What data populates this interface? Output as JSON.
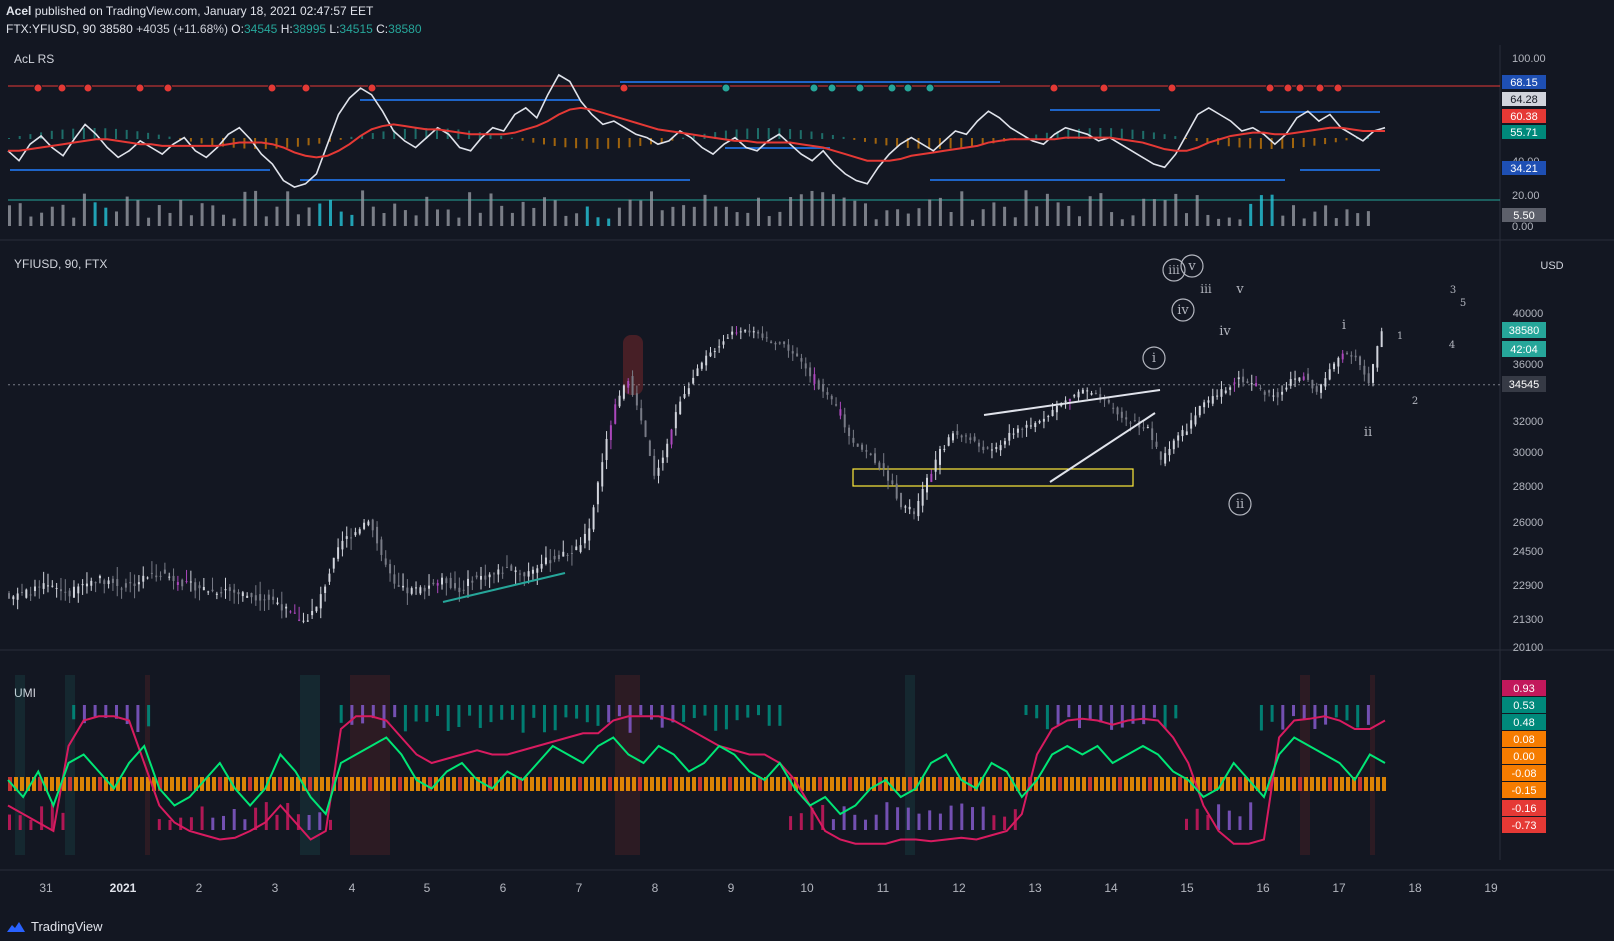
{
  "header": {
    "author": "Acel",
    "published": "published on TradingView.com, January 18, 2021 02:47:57 EET",
    "symbol_line": "FTX:YFIUSD, 90",
    "last": "38580",
    "change": "+4035 (+11.68%)",
    "o_label": "O:",
    "o": "34545",
    "h_label": "H:",
    "h": "38995",
    "l_label": "L:",
    "l": "34515",
    "c_label": "C:",
    "c": "38580"
  },
  "footer": {
    "brand": "TradingView"
  },
  "colors": {
    "bg": "#131722",
    "up": "#d1d4dc",
    "down": "#787b86",
    "teal": "#26a69a",
    "red": "#e53935",
    "magenta": "#d81b60",
    "green": "#00e676",
    "purple": "#7e57c2",
    "orange": "#ff9800",
    "blue": "#1565c0",
    "white": "#e0e3eb",
    "yellow": "#ffeb3b"
  },
  "chart_data": [
    {
      "type": "line",
      "title": "AcL RS",
      "y_ticks": [
        "100.00",
        "40.00",
        "20.00",
        "0.00"
      ],
      "badges": [
        {
          "value": "68.15",
          "color": "#1e4fb3"
        },
        {
          "value": "64.28",
          "color": "#d1d4dc"
        },
        {
          "value": "60.38",
          "color": "#e53935"
        },
        {
          "value": "55.71",
          "color": "#00897b"
        },
        {
          "value": "34.21",
          "color": "#1e4fb3"
        },
        {
          "value": "5.50",
          "color": "#5d606b"
        }
      ],
      "series": [
        {
          "color": "#e0e3eb",
          "values": [
            48,
            42,
            52,
            57,
            50,
            45,
            55,
            64,
            58,
            50,
            44,
            48,
            54,
            50,
            46,
            52,
            56,
            48,
            44,
            50,
            58,
            62,
            55,
            46,
            40,
            30,
            26,
            28,
            34,
            52,
            70,
            80,
            86,
            82,
            72,
            60,
            54,
            50,
            56,
            62,
            58,
            50,
            48,
            56,
            62,
            60,
            70,
            74,
            68,
            82,
            94,
            90,
            78,
            70,
            64,
            66,
            62,
            58,
            56,
            52,
            54,
            60,
            56,
            50,
            46,
            52,
            56,
            50,
            48,
            54,
            58,
            52,
            46,
            42,
            48,
            40,
            34,
            30,
            28,
            38,
            46,
            52,
            56,
            52,
            48,
            54,
            60,
            58,
            66,
            72,
            68,
            62,
            58,
            54,
            52,
            58,
            62,
            60,
            58,
            54,
            56,
            52,
            48,
            44,
            40,
            38,
            46,
            58,
            70,
            74,
            70,
            66,
            60,
            62,
            58,
            52,
            58,
            68,
            72,
            66,
            70,
            62,
            58,
            54,
            60,
            62
          ]
        },
        {
          "color": "#e53935",
          "values": [
            48,
            48,
            49,
            50,
            51,
            52,
            53,
            54,
            55,
            55,
            54,
            53,
            52,
            52,
            51,
            51,
            51,
            51,
            51,
            51,
            52,
            53,
            53,
            53,
            52,
            50,
            47,
            45,
            44,
            45,
            48,
            52,
            57,
            61,
            63,
            64,
            63,
            62,
            61,
            61,
            60,
            59,
            58,
            58,
            58,
            58,
            59,
            61,
            63,
            66,
            70,
            73,
            74,
            73,
            71,
            69,
            67,
            65,
            63,
            61,
            60,
            59,
            58,
            57,
            56,
            55,
            54,
            54,
            53,
            53,
            53,
            53,
            52,
            51,
            50,
            48,
            46,
            44,
            42,
            42,
            42,
            43,
            45,
            46,
            47,
            48,
            49,
            50,
            51,
            53,
            54,
            55,
            55,
            55,
            55,
            55,
            56,
            56,
            56,
            56,
            56,
            55,
            54,
            53,
            51,
            49,
            48,
            48,
            50,
            53,
            55,
            57,
            58,
            59,
            59,
            58,
            58,
            59,
            60,
            61,
            62,
            62,
            61,
            60,
            60,
            60
          ]
        }
      ]
    },
    {
      "type": "candlestick",
      "title": "YFIUSD, 90, FTX",
      "currency": "USD",
      "y_ticks": [
        "40000",
        "36000",
        "32000",
        "30000",
        "28000",
        "26000",
        "24500",
        "22900",
        "21300",
        "20100"
      ],
      "price_badges": [
        {
          "value": "38580",
          "color": "#26a69a"
        },
        {
          "value": "42:04",
          "color": "#26a69a"
        },
        {
          "value": "34545",
          "color": "#363a45"
        }
      ],
      "x_ticks": [
        "31",
        "2021",
        "2",
        "3",
        "4",
        "5",
        "6",
        "7",
        "8",
        "9",
        "10",
        "11",
        "12",
        "13",
        "14",
        "15",
        "16",
        "17",
        "18",
        "19"
      ],
      "close": [
        22400,
        22600,
        22800,
        22700,
        22500,
        22900,
        23200,
        23100,
        22800,
        23000,
        23300,
        23500,
        23200,
        22900,
        22800,
        22600,
        22700,
        22500,
        22400,
        22300,
        22100,
        21500,
        21200,
        21800,
        23500,
        25000,
        25500,
        26200,
        24300,
        22800,
        22600,
        22700,
        23000,
        23100,
        22600,
        23200,
        23300,
        23500,
        23700,
        23400,
        23800,
        24100,
        24300,
        24600,
        25500,
        29500,
        33000,
        35000,
        32000,
        28500,
        30500,
        33500,
        35000,
        36500,
        37500,
        38500,
        38800,
        38200,
        37800,
        37500,
        36500,
        35200,
        34000,
        33000,
        31000,
        30200,
        29500,
        28500,
        27000,
        26500,
        28300,
        30000,
        31200,
        31000,
        30400,
        30000,
        30800,
        31500,
        31600,
        32300,
        33000,
        33600,
        34200,
        33700,
        33100,
        32200,
        31900,
        31500,
        29500,
        30800,
        31500,
        32900,
        33600,
        34300,
        35000,
        34600,
        34000,
        33800,
        34800,
        35200,
        34000,
        35500,
        37000,
        36600,
        34545,
        38580
      ],
      "annotations": [
        {
          "text": "iii",
          "circled": true
        },
        {
          "text": "v",
          "circled": true
        },
        {
          "text": "iv",
          "circled": true
        },
        {
          "text": "iii",
          "circled": false
        },
        {
          "text": "v",
          "circled": false
        },
        {
          "text": "iv",
          "circled": false
        },
        {
          "text": "i",
          "circled": true
        },
        {
          "text": "ii",
          "circled": true
        },
        {
          "text": "i",
          "circled": false
        },
        {
          "text": "ii",
          "circled": false
        },
        {
          "text": "1",
          "circled": false
        },
        {
          "text": "2",
          "circled": false
        },
        {
          "text": "3",
          "circled": false
        },
        {
          "text": "4",
          "circled": false
        },
        {
          "text": "5",
          "circled": false
        }
      ]
    },
    {
      "type": "line",
      "title": "UMI",
      "badges": [
        {
          "value": "0.93",
          "color": "#c2185b"
        },
        {
          "value": "0.53",
          "color": "#00897b"
        },
        {
          "value": "0.48",
          "color": "#00897b"
        },
        {
          "value": "0.08",
          "color": "#f57c00"
        },
        {
          "value": "0.00",
          "color": "#f57c00"
        },
        {
          "value": "-0.08",
          "color": "#f57c00"
        },
        {
          "value": "-0.15",
          "color": "#f57c00"
        },
        {
          "value": "-0.16",
          "color": "#e53935"
        },
        {
          "value": "-0.73",
          "color": "#e53935"
        }
      ],
      "series": [
        {
          "color": "#d81b60",
          "values": [
            -0.3,
            -0.4,
            -0.5,
            -0.6,
            0.4,
            0.7,
            0.75,
            0.75,
            0.7,
            0.2,
            -0.3,
            -0.5,
            -0.6,
            -0.65,
            -0.7,
            -0.68,
            -0.6,
            -0.5,
            -0.3,
            -0.5,
            -0.7,
            -0.6,
            0.6,
            0.75,
            0.75,
            0.7,
            0.5,
            0.3,
            0.2,
            0.25,
            0.3,
            0.35,
            0.3,
            0.3,
            0.35,
            0.4,
            0.45,
            0.5,
            0.55,
            0.55,
            0.7,
            0.75,
            0.75,
            0.75,
            0.7,
            0.6,
            0.5,
            0.4,
            0.35,
            0.3,
            0.3,
            0.2,
            0.0,
            -0.3,
            -0.6,
            -0.7,
            -0.75,
            -0.75,
            -0.75,
            -0.7,
            -0.7,
            -0.72,
            -0.7,
            -0.68,
            -0.7,
            -0.65,
            -0.6,
            -0.4,
            0.3,
            0.6,
            0.7,
            0.72,
            0.7,
            0.65,
            0.7,
            0.72,
            0.7,
            0.5,
            0.2,
            -0.3,
            -0.6,
            -0.75,
            -0.75,
            -0.7,
            0.5,
            0.7,
            0.72,
            0.75,
            0.7,
            0.6,
            0.6,
            0.7
          ]
        },
        {
          "color": "#00e676",
          "values": [
            0.0,
            -0.2,
            0.1,
            -0.3,
            0.2,
            0.3,
            0.1,
            -0.1,
            0.2,
            0.4,
            -0.1,
            -0.3,
            -0.2,
            0.0,
            0.2,
            -0.1,
            -0.3,
            -0.1,
            0.3,
            0.1,
            -0.2,
            -0.4,
            0.2,
            0.3,
            0.4,
            0.5,
            0.3,
            0.0,
            -0.1,
            0.1,
            0.2,
            0.0,
            -0.1,
            0.1,
            0.0,
            0.2,
            0.4,
            0.3,
            0.2,
            0.4,
            0.5,
            0.3,
            0.2,
            0.4,
            0.3,
            0.1,
            0.2,
            0.4,
            0.3,
            0.1,
            0.0,
            0.2,
            -0.1,
            -0.3,
            -0.2,
            -0.4,
            -0.3,
            -0.1,
            0.0,
            -0.2,
            -0.1,
            0.2,
            0.3,
            0.0,
            -0.1,
            0.2,
            0.1,
            -0.2,
            0.0,
            0.3,
            0.4,
            0.3,
            0.4,
            0.2,
            0.3,
            0.4,
            0.3,
            0.1,
            0.0,
            -0.2,
            -0.1,
            0.2,
            0.0,
            -0.2,
            0.3,
            0.5,
            0.4,
            0.3,
            0.2,
            0.0,
            0.3,
            0.2
          ]
        }
      ]
    }
  ]
}
